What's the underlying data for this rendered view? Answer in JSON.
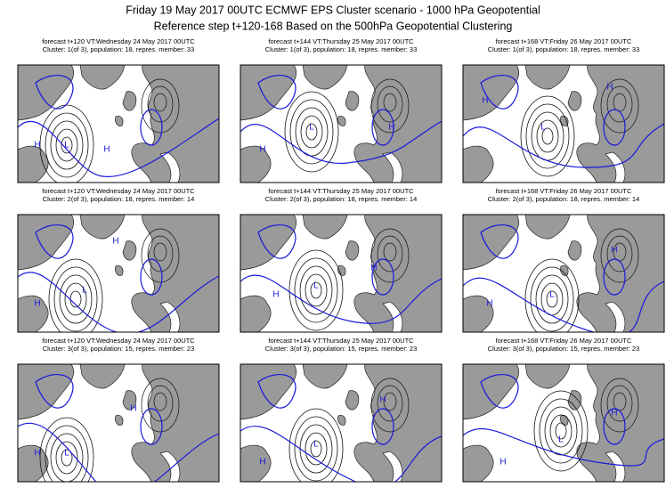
{
  "header": {
    "title": "Friday 19 May 2017 00UTC ECMWF EPS Cluster scenario - 1000 hPa Geopotential",
    "subtitle": "Reference step t+120-168 Based on the 500hPa Geopotential Clustering"
  },
  "panels": [
    {
      "forecast": "forecast t+120 VT:Wednesday 24 May 2017 00UTC",
      "cluster": "Cluster: 1(of 3), population: 18, repres. member: 33",
      "labels": [
        "H",
        "L",
        "H"
      ]
    },
    {
      "forecast": "forecast t+144 VT:Thursday 25 May 2017 00UTC",
      "cluster": "Cluster: 1(of 3), population: 18, repres. member: 33",
      "labels": [
        "H",
        "L",
        "H"
      ]
    },
    {
      "forecast": "forecast t+168 VT:Friday 26 May 2017 00UTC",
      "cluster": "Cluster: 1(of 3), population: 18, repres. member: 33",
      "labels": [
        "H",
        "L",
        "H"
      ]
    },
    {
      "forecast": "forecast t+120 VT:Wednesday 24 May 2017 00UTC",
      "cluster": "Cluster: 2(of 3), population: 18, repres. member: 14",
      "labels": [
        "H",
        "L",
        "H"
      ]
    },
    {
      "forecast": "forecast t+144 VT:Thursday 25 May 2017 00UTC",
      "cluster": "Cluster: 2(of 3), population: 18, repres. member: 14",
      "labels": [
        "H",
        "L",
        "H"
      ]
    },
    {
      "forecast": "forecast t+168 VT:Friday 26 May 2017 00UTC",
      "cluster": "Cluster: 2(of 3), population: 18, repres. member: 14",
      "labels": [
        "H",
        "L",
        "H"
      ]
    },
    {
      "forecast": "forecast t+120 VT:Wednesday 24 May 2017 00UTC",
      "cluster": "Cluster: 3(of 3), population: 15, repres. member: 23",
      "labels": [
        "H",
        "L",
        "H"
      ]
    },
    {
      "forecast": "forecast t+144 VT:Thursday 25 May 2017 00UTC",
      "cluster": "Cluster: 3(of 3), population: 15, repres. member: 23",
      "labels": [
        "H",
        "L",
        "H"
      ]
    },
    {
      "forecast": "forecast t+168 VT:Friday 26 May 2017 00UTC",
      "cluster": "Cluster: 3(of 3), population: 15, repres. member: 23",
      "labels": [
        "H",
        "L",
        "H"
      ]
    }
  ]
}
